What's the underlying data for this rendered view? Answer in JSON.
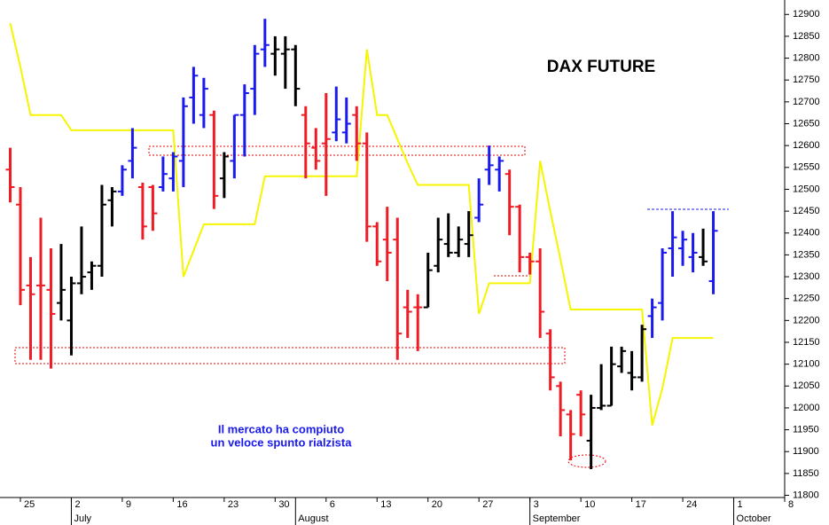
{
  "chart_data": {
    "type": "ohlc",
    "title": "DAX FUTURE",
    "annotation": [
      "Il mercato ha compiuto",
      "un veloce spunto rialzista"
    ],
    "x": [
      "06-22",
      "06-25",
      "06-26",
      "06-27",
      "06-28",
      "06-29",
      "07-02",
      "07-03",
      "07-04",
      "07-05",
      "07-06",
      "07-09",
      "07-10",
      "07-11",
      "07-12",
      "07-13",
      "07-16",
      "07-17",
      "07-18",
      "07-19",
      "07-20",
      "07-23",
      "07-24",
      "07-25",
      "07-26",
      "07-27",
      "07-30",
      "07-31",
      "08-01",
      "08-02",
      "08-03",
      "08-06",
      "08-07",
      "08-08",
      "08-09",
      "08-10",
      "08-13",
      "08-14",
      "08-15",
      "08-16",
      "08-17",
      "08-20",
      "08-21",
      "08-22",
      "08-23",
      "08-24",
      "08-27",
      "08-28",
      "08-29",
      "08-30",
      "08-31",
      "09-03",
      "09-04",
      "09-05",
      "09-06",
      "09-07",
      "09-10",
      "09-11",
      "09-12",
      "09-13",
      "09-14",
      "09-17",
      "09-18",
      "09-19",
      "09-20",
      "09-21",
      "09-24",
      "09-25",
      "09-26",
      "09-27"
    ],
    "open": [
      12545,
      12465,
      12280,
      12280,
      12270,
      12240,
      12200,
      12285,
      12310,
      12325,
      12475,
      12495,
      12565,
      12505,
      12505,
      12505,
      12525,
      12565,
      12710,
      12670,
      12670,
      12525,
      12565,
      12670,
      12730,
      12820,
      12810,
      12810,
      12820,
      12670,
      12595,
      12605,
      12630,
      12630,
      12670,
      12605,
      12415,
      12385,
      12385,
      12230,
      12230,
      12230,
      12325,
      12375,
      12355,
      12375,
      12435,
      12545,
      12545,
      12535,
      12460,
      12345,
      12335,
      12170,
      12050,
      11985,
      12030,
      11925,
      12000,
      12005,
      12095,
      12080,
      12070,
      12210,
      12240,
      12365,
      12365,
      12345,
      12345,
      12290
    ],
    "high": [
      12595,
      12505,
      12345,
      12435,
      12365,
      12375,
      12300,
      12415,
      12335,
      12510,
      12505,
      12555,
      12640,
      12515,
      12510,
      12575,
      12585,
      12710,
      12780,
      12755,
      12680,
      12585,
      12670,
      12740,
      12830,
      12890,
      12850,
      12850,
      12830,
      12690,
      12640,
      12720,
      12735,
      12710,
      12690,
      12630,
      12425,
      12460,
      12435,
      12270,
      12260,
      12355,
      12435,
      12445,
      12415,
      12450,
      12525,
      12600,
      12575,
      12545,
      12465,
      12355,
      12365,
      12180,
      12060,
      11995,
      12040,
      12030,
      12100,
      12140,
      12140,
      12130,
      12190,
      12250,
      12365,
      12450,
      12405,
      12400,
      12410,
      12450
    ],
    "low": [
      12470,
      12235,
      12110,
      12110,
      12090,
      12200,
      12120,
      12260,
      12270,
      12300,
      12415,
      12485,
      12525,
      12385,
      12405,
      12495,
      12495,
      12505,
      12650,
      12640,
      12455,
      12480,
      12525,
      12575,
      12670,
      12780,
      12760,
      12730,
      12690,
      12525,
      12545,
      12485,
      12610,
      12605,
      12565,
      12380,
      12325,
      12290,
      12110,
      12160,
      12130,
      12230,
      12310,
      12345,
      12345,
      12345,
      12425,
      12510,
      12495,
      12395,
      12310,
      12305,
      12160,
      12040,
      11935,
      11880,
      11935,
      11860,
      11995,
      12005,
      12080,
      12040,
      12060,
      12160,
      12200,
      12300,
      12325,
      12310,
      12325,
      12260
    ],
    "close": [
      12505,
      12270,
      12260,
      12280,
      12215,
      12270,
      12285,
      12300,
      12325,
      12465,
      12495,
      12545,
      12595,
      12415,
      12445,
      12535,
      12575,
      12690,
      12760,
      12730,
      12485,
      12575,
      12670,
      12720,
      12810,
      12830,
      12820,
      12820,
      12730,
      12605,
      12565,
      12615,
      12660,
      12650,
      12605,
      12415,
      12335,
      12355,
      12170,
      12220,
      12230,
      12315,
      12385,
      12355,
      12385,
      12395,
      12465,
      12555,
      12565,
      12460,
      12345,
      12335,
      12220,
      12070,
      11995,
      11940,
      11985,
      12000,
      12005,
      12100,
      12130,
      12070,
      12180,
      12230,
      12355,
      12390,
      12385,
      12355,
      12335,
      12405
    ],
    "bar_colors": [
      "#ee1c24",
      "#ee1c24",
      "#ee1c24",
      "#ee1c24",
      "#ee1c24",
      "#000000",
      "#000000",
      "#000000",
      "#000000",
      "#000000",
      "#000000",
      "#1a1aee",
      "#1a1aee",
      "#ee1c24",
      "#ee1c24",
      "#1a1aee",
      "#1a1aee",
      "#1a1aee",
      "#1a1aee",
      "#1a1aee",
      "#ee1c24",
      "#000000",
      "#1a1aee",
      "#1a1aee",
      "#1a1aee",
      "#1a1aee",
      "#000000",
      "#000000",
      "#000000",
      "#ee1c24",
      "#ee1c24",
      "#ee1c24",
      "#1a1aee",
      "#1a1aee",
      "#ee1c24",
      "#ee1c24",
      "#ee1c24",
      "#ee1c24",
      "#ee1c24",
      "#ee1c24",
      "#ee1c24",
      "#000000",
      "#000000",
      "#000000",
      "#000000",
      "#000000",
      "#1a1aee",
      "#1a1aee",
      "#1a1aee",
      "#ee1c24",
      "#ee1c24",
      "#ee1c24",
      "#ee1c24",
      "#ee1c24",
      "#ee1c24",
      "#ee1c24",
      "#ee1c24",
      "#000000",
      "#000000",
      "#000000",
      "#000000",
      "#000000",
      "#000000",
      "#1a1aee",
      "#1a1aee",
      "#1a1aee",
      "#1a1aee",
      "#1a1aee",
      "#000000",
      "#1a1aee"
    ],
    "line": {
      "color": "#f5f500",
      "values": [
        12880,
        12780,
        12670,
        12670,
        12670,
        12670,
        12635,
        12635,
        12635,
        12635,
        12635,
        12635,
        12635,
        12635,
        12635,
        12635,
        12635,
        12300,
        12360,
        12420,
        12420,
        12420,
        12420,
        12420,
        12420,
        12530,
        12530,
        12530,
        12530,
        12530,
        12530,
        12530,
        12530,
        12530,
        12530,
        12820,
        12670,
        12670,
        12615,
        12560,
        12510,
        12510,
        12510,
        12510,
        12510,
        12510,
        12215,
        12285,
        12285,
        12285,
        12285,
        12285,
        12565,
        12450,
        12340,
        12225,
        12225,
        12225,
        12225,
        12225,
        12225,
        12225,
        12225,
        11960,
        12045,
        12160,
        12160,
        12160,
        12160,
        12160
      ]
    },
    "ylim": [
      11795,
      12933
    ],
    "yticks": [
      11800,
      11850,
      11900,
      11950,
      12000,
      12050,
      12100,
      12150,
      12200,
      12250,
      12300,
      12350,
      12400,
      12450,
      12500,
      12550,
      12600,
      12650,
      12700,
      12750,
      12800,
      12850,
      12900
    ],
    "xlim": [
      "06-21",
      "10-08"
    ],
    "xticks": [
      {
        "value": "06-25",
        "label": "25"
      },
      {
        "value": "07-02",
        "label": "2"
      },
      {
        "value": "07-09",
        "label": "9"
      },
      {
        "value": "07-16",
        "label": "16"
      },
      {
        "value": "07-23",
        "label": "23"
      },
      {
        "value": "07-30",
        "label": "30"
      },
      {
        "value": "08-06",
        "label": "6"
      },
      {
        "value": "08-13",
        "label": "13"
      },
      {
        "value": "08-20",
        "label": "20"
      },
      {
        "value": "08-27",
        "label": "27"
      },
      {
        "value": "09-03",
        "label": "3"
      },
      {
        "value": "09-10",
        "label": "10"
      },
      {
        "value": "09-17",
        "label": "17"
      },
      {
        "value": "09-24",
        "label": "24"
      },
      {
        "value": "10-01",
        "label": "1"
      },
      {
        "value": "10-08",
        "label": "8"
      }
    ],
    "months": [
      {
        "value": "07-02",
        "label": "July"
      },
      {
        "value": "08-01",
        "label": "August"
      },
      {
        "value": "09-03",
        "label": "September"
      },
      {
        "value": "10-01",
        "label": "October"
      }
    ]
  }
}
